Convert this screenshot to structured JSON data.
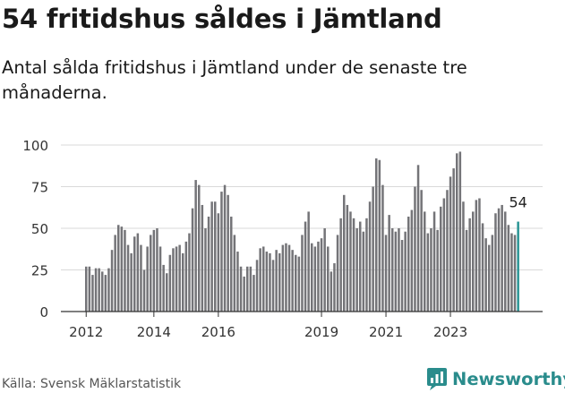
{
  "header": {
    "title": "54 fritidshus såldes i Jämtland",
    "subtitle": "Antal sålda fritidshus i Jämtland under de senaste tre månaderna."
  },
  "footer": {
    "source": "Källa: Svensk Mäklarstatistik",
    "brand": "Newsworthy"
  },
  "colors": {
    "bar": "#747478",
    "highlight": "#2a9494",
    "grid": "#d9d9d9",
    "axis": "#333333",
    "brand": "#2a8c8c"
  },
  "chart_data": {
    "type": "bar",
    "x_ticks": [
      {
        "index": 0,
        "label": "2012"
      },
      {
        "index": 21,
        "label": "2014"
      },
      {
        "index": 41,
        "label": "2016"
      },
      {
        "index": 73,
        "label": "2019"
      },
      {
        "index": 93,
        "label": "2021"
      },
      {
        "index": 113,
        "label": "2023"
      }
    ],
    "values": [
      27,
      27,
      22,
      26,
      26,
      24,
      22,
      26,
      37,
      46,
      52,
      51,
      49,
      40,
      35,
      45,
      47,
      40,
      25,
      39,
      46,
      49,
      50,
      39,
      28,
      23,
      34,
      38,
      39,
      40,
      35,
      42,
      47,
      62,
      79,
      76,
      64,
      50,
      57,
      66,
      66,
      59,
      72,
      76,
      70,
      57,
      46,
      36,
      27,
      21,
      27,
      27,
      22,
      31,
      38,
      39,
      36,
      35,
      31,
      37,
      35,
      40,
      41,
      40,
      37,
      34,
      33,
      46,
      54,
      60,
      41,
      39,
      42,
      44,
      50,
      39,
      24,
      29,
      46,
      56,
      70,
      64,
      60,
      56,
      50,
      54,
      48,
      56,
      66,
      75,
      92,
      91,
      76,
      46,
      58,
      50,
      48,
      50,
      43,
      48,
      57,
      61,
      75,
      88,
      73,
      60,
      47,
      50,
      60,
      49,
      63,
      68,
      73,
      81,
      86,
      95,
      96,
      66,
      49,
      56,
      60,
      67,
      68,
      53,
      44,
      40,
      46,
      59,
      62,
      64,
      60,
      52,
      47,
      46,
      54
    ],
    "highlight_last": 1,
    "value_label": "54",
    "ylim": [
      0,
      100
    ],
    "yticks": [
      0,
      25,
      50,
      75,
      100
    ],
    "grid": true
  }
}
